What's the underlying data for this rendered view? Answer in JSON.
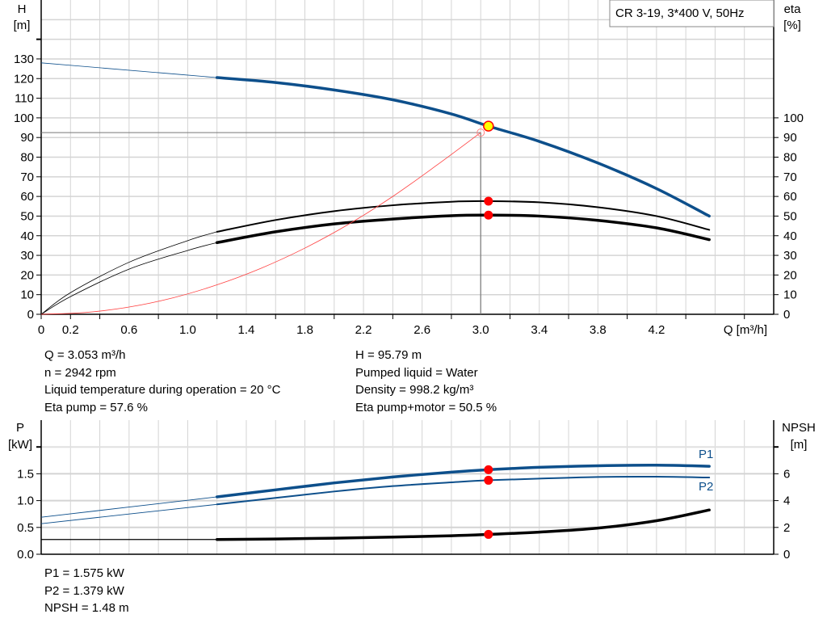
{
  "chart_data": [
    {
      "type": "line",
      "title": "CR 3-19, 3*400 V, 50Hz",
      "xlabel": "Q [m³/h]",
      "ylabel_left": [
        "H",
        "[m]"
      ],
      "ylabel_right": [
        "eta",
        "[%]"
      ],
      "xlim": [
        0,
        5.0
      ],
      "ylim_left": [
        0,
        160
      ],
      "ylim_right": [
        0,
        160
      ],
      "x_ticks": [
        "0",
        "0.2",
        "0.6",
        "1.0",
        "1.4",
        "1.8",
        "2.2",
        "2.6",
        "3.0",
        "3.4",
        "3.8",
        "4.2"
      ],
      "x_tick_values": [
        0,
        0.2,
        0.6,
        1.0,
        1.4,
        1.8,
        2.2,
        2.6,
        3.0,
        3.4,
        3.8,
        4.2
      ],
      "y_ticks_left": [
        0,
        10,
        20,
        30,
        40,
        50,
        60,
        70,
        80,
        90,
        100,
        110,
        120,
        130
      ],
      "y_ticks_right": [
        0,
        10,
        20,
        30,
        40,
        50,
        60,
        70,
        80,
        90,
        100
      ],
      "grid": true,
      "series": [
        {
          "id": "H",
          "axis": "left",
          "color": "#0d4f8b",
          "x": [
            0,
            0.4,
            0.8,
            1.2,
            1.6,
            2.0,
            2.4,
            2.8,
            3.053,
            3.4,
            3.8,
            4.2,
            4.56
          ],
          "y": [
            128,
            125.5,
            123,
            120.5,
            118,
            114.2,
            109.2,
            102,
            95.79,
            88,
            77,
            64,
            50
          ]
        },
        {
          "id": "eta-pump",
          "axis": "right",
          "color": "#000000",
          "x": [
            0,
            0.2,
            0.6,
            1.0,
            1.2,
            1.6,
            2.0,
            2.4,
            2.8,
            3.053,
            3.4,
            3.8,
            4.2,
            4.56
          ],
          "y": [
            0,
            11,
            26.5,
            37.5,
            42,
            48,
            52.5,
            55.5,
            57.3,
            57.6,
            57,
            54.5,
            50,
            43
          ]
        },
        {
          "id": "eta-pump-motor",
          "axis": "right",
          "color": "#000000",
          "x": [
            0,
            0.2,
            0.6,
            1.0,
            1.2,
            1.6,
            2.0,
            2.4,
            2.8,
            3.053,
            3.4,
            3.8,
            4.2,
            4.56
          ],
          "y": [
            0,
            9,
            23,
            32.5,
            36.5,
            42,
            46,
            48.5,
            50.2,
            50.5,
            50,
            47.8,
            44,
            38
          ]
        },
        {
          "id": "system-curve",
          "axis": "left",
          "color": "#ff4040",
          "x": [
            0,
            0.3,
            0.6,
            0.9,
            1.2,
            1.5,
            1.8,
            2.1,
            2.4,
            2.7,
            3.0
          ],
          "y": [
            0,
            0.9,
            3.7,
            8.4,
            15,
            23.4,
            33.7,
            45.9,
            60,
            75.9,
            92.5
          ]
        }
      ],
      "operating_point": {
        "q": 3.053,
        "h": 95.79,
        "eta_pump": 57.6,
        "eta_pump_motor": 50.5
      },
      "system_point": {
        "q": 3.0,
        "h": 92.5
      }
    },
    {
      "type": "line",
      "ylabel_left": [
        "P",
        "[kW]"
      ],
      "ylabel_right": [
        "NPSH",
        "[m]"
      ],
      "xlim": [
        0,
        5.0
      ],
      "ylim_left": [
        0,
        2.5
      ],
      "ylim_right": [
        0,
        10
      ],
      "y_ticks_left": [
        "0.0",
        "0.5",
        "1.0",
        "1.5"
      ],
      "y_tick_values_left": [
        0,
        0.5,
        1.0,
        1.5
      ],
      "y_ticks_right": [
        0,
        2,
        4,
        6
      ],
      "grid": true,
      "series": [
        {
          "id": "P1",
          "name": "P1",
          "axis": "left",
          "color": "#0d4f8b",
          "x": [
            0,
            0.6,
            1.2,
            1.6,
            2.0,
            2.4,
            2.8,
            3.053,
            3.4,
            3.8,
            4.2,
            4.56
          ],
          "y": [
            0.69,
            0.88,
            1.07,
            1.2,
            1.33,
            1.44,
            1.53,
            1.575,
            1.62,
            1.65,
            1.66,
            1.64
          ]
        },
        {
          "id": "P2",
          "name": "P2",
          "axis": "left",
          "color": "#0d4f8b",
          "x": [
            0,
            0.6,
            1.2,
            1.6,
            2.0,
            2.4,
            2.8,
            3.053,
            3.4,
            3.8,
            4.2,
            4.56
          ],
          "y": [
            0.57,
            0.75,
            0.93,
            1.05,
            1.17,
            1.27,
            1.34,
            1.379,
            1.41,
            1.44,
            1.445,
            1.43
          ]
        },
        {
          "id": "NPSH",
          "axis": "right",
          "color": "#000000",
          "x": [
            0,
            1.2,
            1.6,
            2.0,
            2.4,
            2.8,
            3.053,
            3.4,
            3.8,
            4.2,
            4.56
          ],
          "y": [
            1.1,
            1.1,
            1.14,
            1.2,
            1.28,
            1.38,
            1.48,
            1.65,
            1.95,
            2.5,
            3.3
          ]
        }
      ],
      "operating_point": {
        "q": 3.053,
        "p1": 1.575,
        "p2": 1.379,
        "npsh": 1.48
      }
    }
  ],
  "info_top": {
    "left": [
      "Q = 3.053 m³/h",
      "n = 2942 rpm",
      "Liquid temperature during operation = 20 °C",
      "Eta pump = 57.6 %"
    ],
    "right": [
      "H = 95.79 m",
      "Pumped liquid = Water",
      "Density = 998.2 kg/m³",
      "Eta pump+motor = 50.5 %"
    ]
  },
  "info_bottom": [
    "P1 = 1.575 kW",
    "P2 = 1.379 kW",
    "NPSH = 1.48 m"
  ],
  "colors": {
    "curve_blue": "#0d4f8b",
    "point_red": "#ff0000",
    "duty_point": "#ffff00",
    "grid": "#d4d4d4"
  }
}
